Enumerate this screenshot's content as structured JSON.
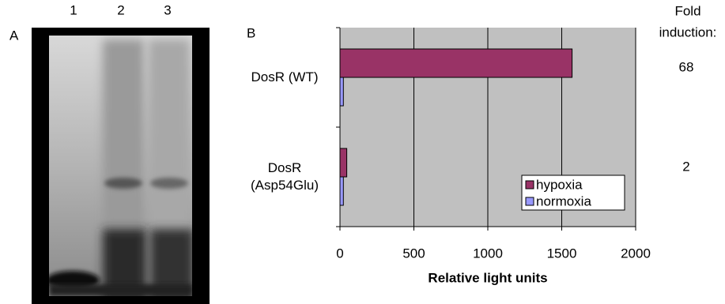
{
  "panel_a": {
    "label": "A",
    "lanes": [
      "1",
      "2",
      "3"
    ]
  },
  "chart_data": {
    "type": "hbar",
    "panel_label": "B",
    "categories": [
      "DosR (WT)",
      "DosR (Asp54Glu)"
    ],
    "series": [
      {
        "name": "hypoxia",
        "color": "#993366",
        "values": [
          1570,
          46
        ]
      },
      {
        "name": "normoxia",
        "color": "#9999ff",
        "values": [
          23,
          23
        ]
      }
    ],
    "xlabel": "Relative light units",
    "xlim": [
      0,
      2000
    ],
    "xticks": [
      0,
      500,
      1000,
      1500,
      2000
    ],
    "grid": true,
    "legend": "lower-right"
  },
  "fold_induction": {
    "title": [
      "Fold",
      "induction:"
    ],
    "values": [
      68,
      2
    ]
  }
}
